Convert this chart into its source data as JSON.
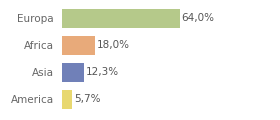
{
  "categories": [
    "Europa",
    "Africa",
    "Asia",
    "America"
  ],
  "values": [
    64.0,
    18.0,
    12.3,
    5.7
  ],
  "labels": [
    "64,0%",
    "18,0%",
    "12,3%",
    "5,7%"
  ],
  "bar_colors": [
    "#b5c98a",
    "#e8aa7a",
    "#7080b8",
    "#e8d870"
  ],
  "background_color": "#ffffff",
  "xlim": [
    0,
    85
  ],
  "bar_height": 0.72,
  "label_fontsize": 7.5,
  "tick_fontsize": 7.5,
  "tick_color": "#666666",
  "label_color": "#555555",
  "grid_color": "#e0e0e0"
}
